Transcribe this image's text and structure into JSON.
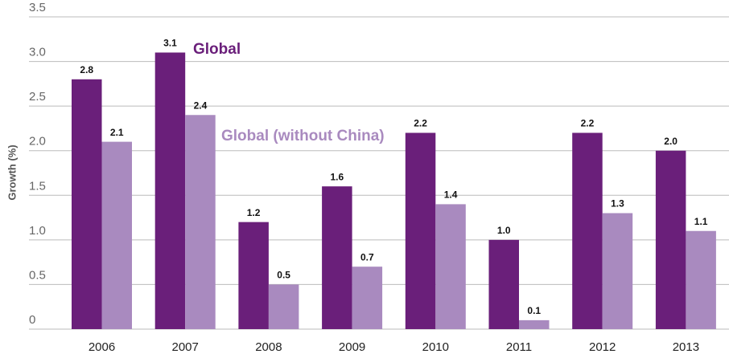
{
  "chart_data": {
    "type": "bar",
    "y_label": "Growth (%)",
    "categories": [
      "2006",
      "2007",
      "2008",
      "2009",
      "2010",
      "2011",
      "2012",
      "2013"
    ],
    "series": [
      {
        "name": "Global",
        "color": "#6a1f7a",
        "values": [
          2.8,
          3.1,
          1.2,
          1.6,
          2.2,
          1.0,
          2.2,
          2.0
        ],
        "value_labels": [
          "2.8",
          "3.1",
          "1.2",
          "1.6",
          "2.2",
          "1.0",
          "2.2",
          "2.0"
        ]
      },
      {
        "name": "Global (without China)",
        "color": "#a98abf",
        "values": [
          2.1,
          2.4,
          0.5,
          0.7,
          1.4,
          0.1,
          1.3,
          1.1
        ],
        "value_labels": [
          "2.1",
          "2.4",
          "0.5",
          "0.7",
          "1.4",
          "0.1",
          "1.3",
          "1.1"
        ]
      }
    ],
    "ylim": [
      0,
      3.5
    ],
    "yticks": [
      0,
      0.5,
      {
        "value": 1,
        "label": "1.0"
      },
      1.5,
      {
        "value": 2,
        "label": "2.0"
      },
      2.5,
      {
        "value": 3,
        "label": "3.0"
      },
      3.5
    ],
    "grid": true
  }
}
